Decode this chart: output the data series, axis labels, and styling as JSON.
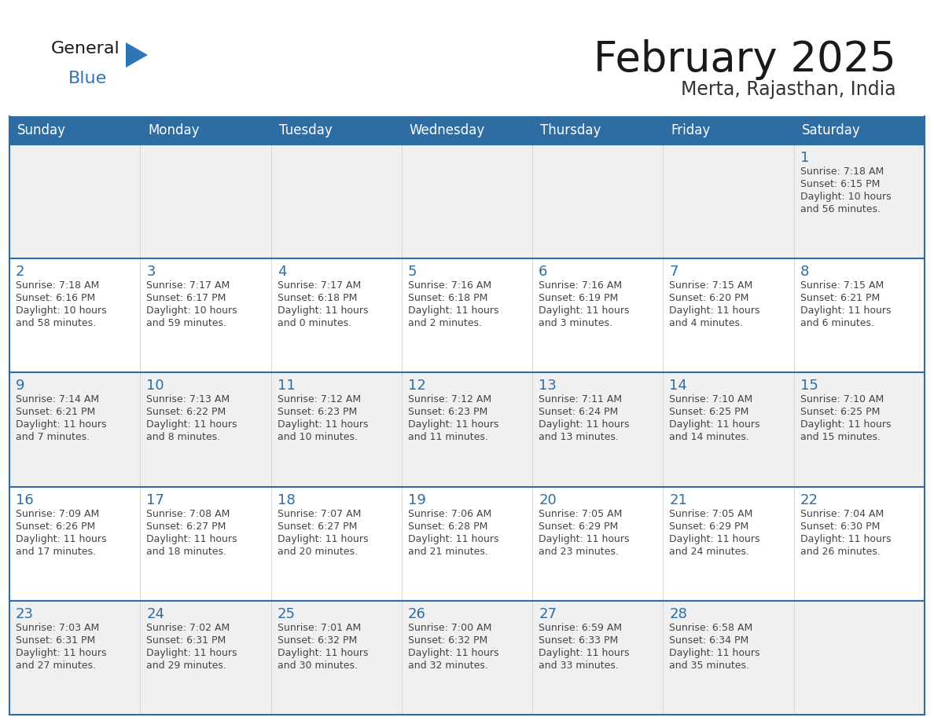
{
  "title": "February 2025",
  "subtitle": "Merta, Rajasthan, India",
  "days_of_week": [
    "Sunday",
    "Monday",
    "Tuesday",
    "Wednesday",
    "Thursday",
    "Friday",
    "Saturday"
  ],
  "header_bg": "#2E6DA4",
  "header_text": "#FFFFFF",
  "cell_bg": "#FFFFFF",
  "row1_bg": "#F0F0F0",
  "day_number_color": "#2E6DA4",
  "text_color": "#444444",
  "border_color": "#2E6DA4",
  "logo_general_color": "#1a1a1a",
  "logo_blue_color": "#2E75B6",
  "logo_triangle_color": "#2E75B6",
  "calendar_data": [
    [
      null,
      null,
      null,
      null,
      null,
      null,
      {
        "day": 1,
        "sunrise": "7:18 AM",
        "sunset": "6:15 PM",
        "daylight": "10 hours\nand 56 minutes."
      }
    ],
    [
      {
        "day": 2,
        "sunrise": "7:18 AM",
        "sunset": "6:16 PM",
        "daylight": "10 hours\nand 58 minutes."
      },
      {
        "day": 3,
        "sunrise": "7:17 AM",
        "sunset": "6:17 PM",
        "daylight": "10 hours\nand 59 minutes."
      },
      {
        "day": 4,
        "sunrise": "7:17 AM",
        "sunset": "6:18 PM",
        "daylight": "11 hours\nand 0 minutes."
      },
      {
        "day": 5,
        "sunrise": "7:16 AM",
        "sunset": "6:18 PM",
        "daylight": "11 hours\nand 2 minutes."
      },
      {
        "day": 6,
        "sunrise": "7:16 AM",
        "sunset": "6:19 PM",
        "daylight": "11 hours\nand 3 minutes."
      },
      {
        "day": 7,
        "sunrise": "7:15 AM",
        "sunset": "6:20 PM",
        "daylight": "11 hours\nand 4 minutes."
      },
      {
        "day": 8,
        "sunrise": "7:15 AM",
        "sunset": "6:21 PM",
        "daylight": "11 hours\nand 6 minutes."
      }
    ],
    [
      {
        "day": 9,
        "sunrise": "7:14 AM",
        "sunset": "6:21 PM",
        "daylight": "11 hours\nand 7 minutes."
      },
      {
        "day": 10,
        "sunrise": "7:13 AM",
        "sunset": "6:22 PM",
        "daylight": "11 hours\nand 8 minutes."
      },
      {
        "day": 11,
        "sunrise": "7:12 AM",
        "sunset": "6:23 PM",
        "daylight": "11 hours\nand 10 minutes."
      },
      {
        "day": 12,
        "sunrise": "7:12 AM",
        "sunset": "6:23 PM",
        "daylight": "11 hours\nand 11 minutes."
      },
      {
        "day": 13,
        "sunrise": "7:11 AM",
        "sunset": "6:24 PM",
        "daylight": "11 hours\nand 13 minutes."
      },
      {
        "day": 14,
        "sunrise": "7:10 AM",
        "sunset": "6:25 PM",
        "daylight": "11 hours\nand 14 minutes."
      },
      {
        "day": 15,
        "sunrise": "7:10 AM",
        "sunset": "6:25 PM",
        "daylight": "11 hours\nand 15 minutes."
      }
    ],
    [
      {
        "day": 16,
        "sunrise": "7:09 AM",
        "sunset": "6:26 PM",
        "daylight": "11 hours\nand 17 minutes."
      },
      {
        "day": 17,
        "sunrise": "7:08 AM",
        "sunset": "6:27 PM",
        "daylight": "11 hours\nand 18 minutes."
      },
      {
        "day": 18,
        "sunrise": "7:07 AM",
        "sunset": "6:27 PM",
        "daylight": "11 hours\nand 20 minutes."
      },
      {
        "day": 19,
        "sunrise": "7:06 AM",
        "sunset": "6:28 PM",
        "daylight": "11 hours\nand 21 minutes."
      },
      {
        "day": 20,
        "sunrise": "7:05 AM",
        "sunset": "6:29 PM",
        "daylight": "11 hours\nand 23 minutes."
      },
      {
        "day": 21,
        "sunrise": "7:05 AM",
        "sunset": "6:29 PM",
        "daylight": "11 hours\nand 24 minutes."
      },
      {
        "day": 22,
        "sunrise": "7:04 AM",
        "sunset": "6:30 PM",
        "daylight": "11 hours\nand 26 minutes."
      }
    ],
    [
      {
        "day": 23,
        "sunrise": "7:03 AM",
        "sunset": "6:31 PM",
        "daylight": "11 hours\nand 27 minutes."
      },
      {
        "day": 24,
        "sunrise": "7:02 AM",
        "sunset": "6:31 PM",
        "daylight": "11 hours\nand 29 minutes."
      },
      {
        "day": 25,
        "sunrise": "7:01 AM",
        "sunset": "6:32 PM",
        "daylight": "11 hours\nand 30 minutes."
      },
      {
        "day": 26,
        "sunrise": "7:00 AM",
        "sunset": "6:32 PM",
        "daylight": "11 hours\nand 32 minutes."
      },
      {
        "day": 27,
        "sunrise": "6:59 AM",
        "sunset": "6:33 PM",
        "daylight": "11 hours\nand 33 minutes."
      },
      {
        "day": 28,
        "sunrise": "6:58 AM",
        "sunset": "6:34 PM",
        "daylight": "11 hours\nand 35 minutes."
      },
      null
    ]
  ]
}
